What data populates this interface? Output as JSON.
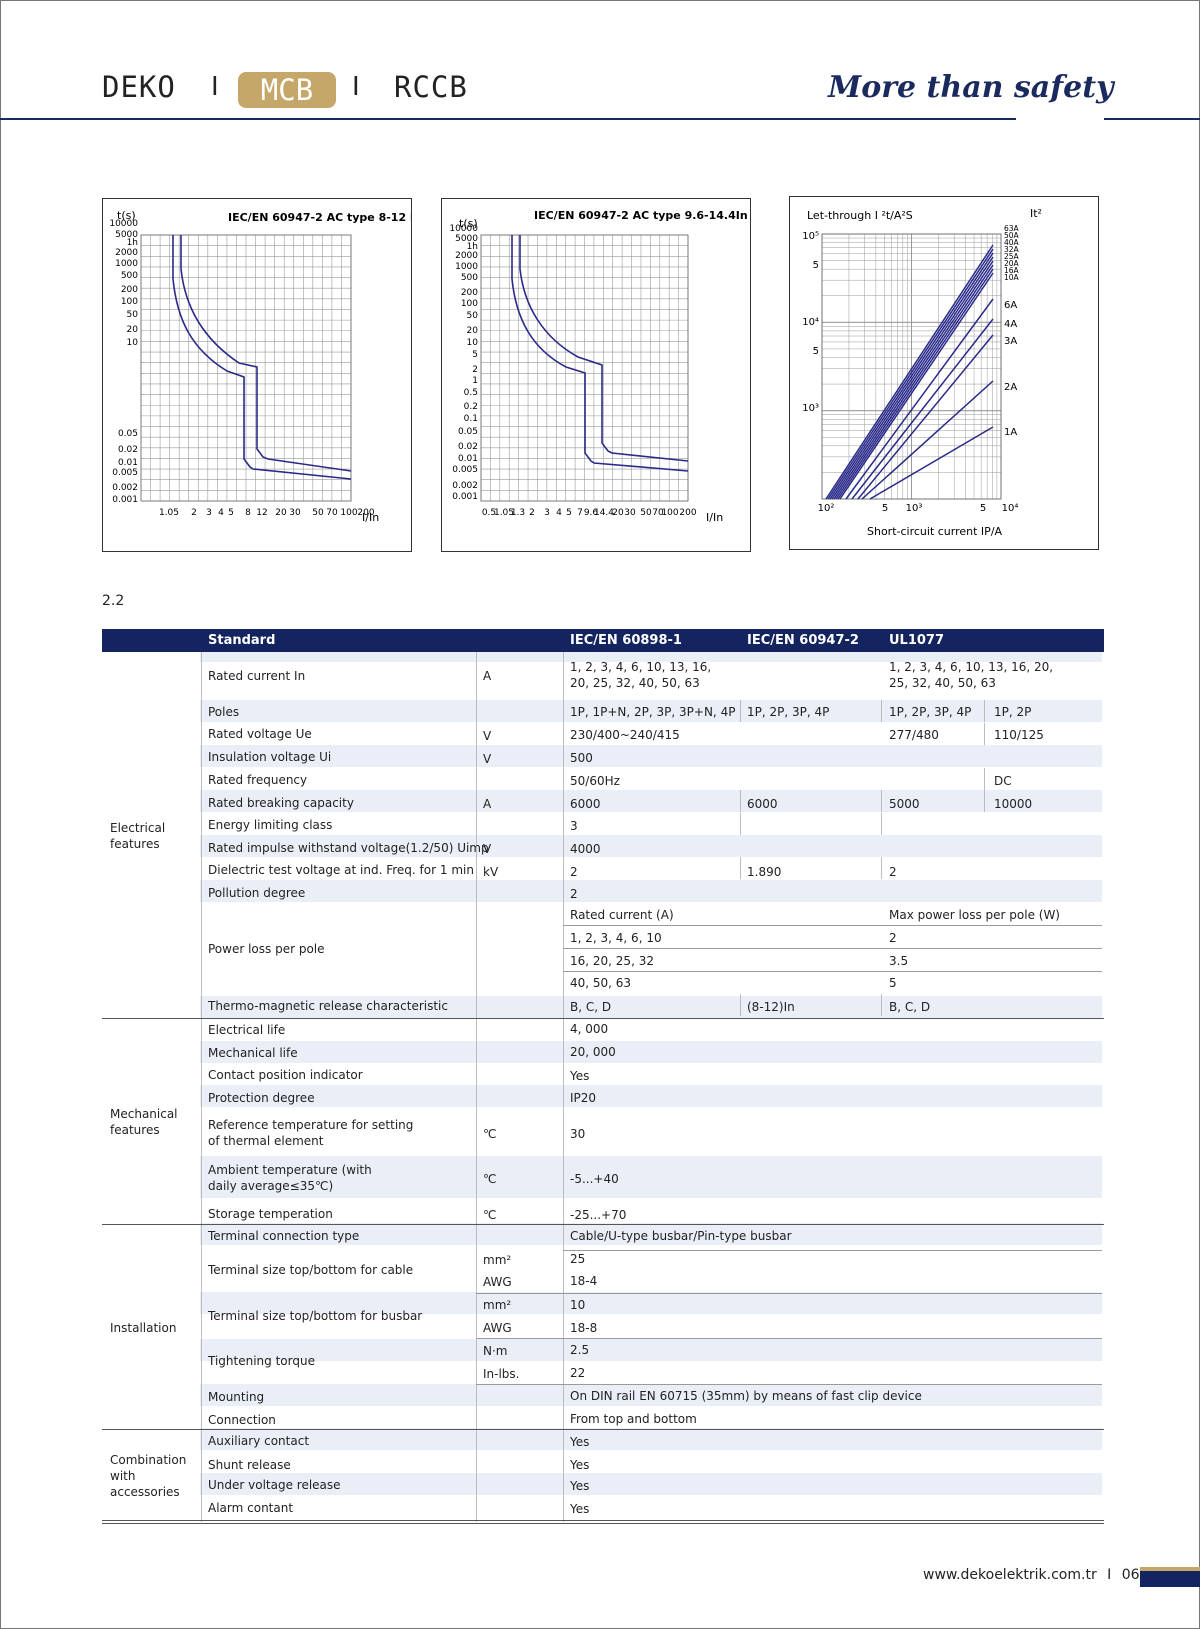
{
  "header": {
    "brand": "DEKO",
    "separator": "I",
    "tab_active": "MCB",
    "tab_other": "RCCB",
    "slogan": "More than safety"
  },
  "charts": [
    {
      "title": "IEC/EN 60947-2 AC type 8-12 In",
      "ylabel": "t(s)",
      "xlabel": "I/In",
      "yticks": [
        "10000",
        "5000",
        "1h",
        "2000",
        "1000",
        "500",
        "200",
        "100",
        "50",
        "20",
        "10",
        "0.05",
        "0.02",
        "0.01",
        "0.005",
        "0.002",
        "0.001"
      ],
      "xticks": [
        "1.05",
        "2",
        "3",
        "4",
        "5",
        "8",
        "12",
        "20",
        "30",
        "50",
        "70",
        "100",
        "200"
      ]
    },
    {
      "title": "IEC/EN 60947-2 AC type 9.6-14.4In",
      "ylabel": "t(s)",
      "xlabel": "I/In",
      "yticks": [
        "10000",
        "5000",
        "1h",
        "2000",
        "1000",
        "500",
        "200",
        "100",
        "50",
        "20",
        "10",
        "5",
        "2",
        "1",
        "0.5",
        "0.2",
        "0.1",
        "0.05",
        "0.02",
        "0.01",
        "0.005",
        "0.002",
        "0.001"
      ],
      "xticks": [
        "0.5",
        "1.05",
        "1.3",
        "2",
        "3",
        "4",
        "5",
        "7",
        "9.6",
        "14.4",
        "20",
        "30",
        "50",
        "70",
        "100",
        "200"
      ]
    },
    {
      "title": "Let-through I ²t/A²S",
      "corner_label": "It²",
      "yticks": [
        "10⁵",
        "5",
        "10⁴",
        "5",
        "10³"
      ],
      "xticks": [
        "10²",
        "5",
        "10³",
        "5",
        "10⁴"
      ],
      "xlabel": "Short-circuit current IP/A",
      "series_labels": [
        "63A",
        "50A",
        "40A",
        "32A",
        "25A",
        "20A",
        "16A",
        "10A",
        "6A",
        "4A",
        "3A",
        "2A",
        "1A"
      ]
    }
  ],
  "section_number": "2.2",
  "table": {
    "headers": [
      "Standard",
      "IEC/EN 60898-1",
      "IEC/EN 60947-2",
      "UL1077"
    ],
    "groups": [
      "Electrical features",
      "Mechanical features",
      "Installation",
      "Combination with accessories"
    ],
    "rows": {
      "rated_current": {
        "label": "Rated current In",
        "unit": "A",
        "v1": "1, 2, 3, 4, 6, 10, 13, 16,",
        "v1b": "20, 25, 32, 40, 50, 63",
        "v3": "1, 2, 3, 4, 6, 10, 13, 16, 20,",
        "v3b": "25, 32, 40, 50, 63"
      },
      "poles": {
        "label": "Poles",
        "v1": "1P, 1P+N, 2P, 3P, 3P+N, 4P",
        "v2": "1P, 2P, 3P, 4P",
        "v3": "1P, 2P, 3P, 4P",
        "v4": "1P, 2P"
      },
      "rated_voltage": {
        "label": "Rated voltage Ue",
        "unit": "V",
        "v1": "230/400~240/415",
        "v3": "277/480",
        "v4": "110/125"
      },
      "insulation_voltage": {
        "label": "Insulation voltage Ui",
        "unit": "V",
        "v1": "500"
      },
      "rated_frequency": {
        "label": "Rated frequency",
        "v1": "50/60Hz",
        "v4": "DC"
      },
      "breaking_capacity": {
        "label": "Rated breaking capacity",
        "unit": "A",
        "v1": "6000",
        "v2": "6000",
        "v3": "5000",
        "v4": "10000"
      },
      "energy_class": {
        "label": "Energy limiting class",
        "v1": "3"
      },
      "impulse_voltage": {
        "label": "Rated impulse withstand voltage(1.2/50) Uimp",
        "unit": "V",
        "v1": "4000"
      },
      "dielectric": {
        "label": "Dielectric test voltage at ind. Freq. for 1 min",
        "unit": "kV",
        "v1": "2",
        "v2": "1.890",
        "v3": "2"
      },
      "pollution": {
        "label": "Pollution degree",
        "v1": "2"
      },
      "power_loss": {
        "label": "Power loss per pole",
        "sub_h1": "Rated current (A)",
        "sub_h2": "Max power loss per pole (W)",
        "r1a": "1, 2, 3, 4, 6, 10",
        "r1b": "2",
        "r2a": "16, 20, 25, 32",
        "r2b": "3.5",
        "r3a": "40, 50, 63",
        "r3b": "5"
      },
      "thermo": {
        "label": "Thermo-magnetic release characteristic",
        "v1": "B, C, D",
        "v2": "(8-12)In",
        "v3": "B, C, D"
      },
      "electrical_life": {
        "label": "Electrical life",
        "v1": "4, 000"
      },
      "mechanical_life": {
        "label": "Mechanical life",
        "v1": "20, 000"
      },
      "contact_indicator": {
        "label": "Contact position indicator",
        "v1": "Yes"
      },
      "protection": {
        "label": "Protection degree",
        "v1": "IP20"
      },
      "ref_temp": {
        "label": "Reference temperature for setting",
        "label2": "of thermal element",
        "unit": "℃",
        "v1": "30"
      },
      "ambient": {
        "label": "Ambient temperature (with",
        "label2": "daily average≤35℃)",
        "unit": "℃",
        "v1": "-5...+40"
      },
      "storage": {
        "label": "Storage temperation",
        "unit": "℃",
        "v1": "-25...+70"
      },
      "terminal_type": {
        "label": "Terminal connection type",
        "v1": "Cable/U-type busbar/Pin-type busbar"
      },
      "terminal_cable": {
        "label": "Terminal size top/bottom for cable",
        "unit_a": "mm²",
        "v_a": "25",
        "unit_b": "AWG",
        "v_b": "18-4"
      },
      "terminal_busbar": {
        "label": "Terminal size top/bottom for busbar",
        "unit_a": "mm²",
        "v_a": "10",
        "unit_b": "AWG",
        "v_b": "18-8"
      },
      "torque": {
        "label": "Tightening torque",
        "unit_a": "N·m",
        "v_a": "2.5",
        "unit_b": "In-lbs.",
        "v_b": "22"
      },
      "mounting": {
        "label": "Mounting",
        "v1": "On DIN rail EN 60715 (35mm) by means of fast clip device"
      },
      "connection": {
        "label": "Connection",
        "v1": "From top and bottom"
      },
      "aux": {
        "label": "Auxiliary contact",
        "v1": "Yes"
      },
      "shunt": {
        "label": "Shunt release",
        "v1": "Yes"
      },
      "undervoltage": {
        "label": "Under voltage release",
        "v1": "Yes"
      },
      "alarm": {
        "label": "Alarm contant",
        "v1": "Yes"
      }
    }
  },
  "footer": {
    "url": "www.dekoelektrik.com.tr",
    "separator": "I",
    "page": "06"
  },
  "colors": {
    "navy": "#14245e",
    "gold": "#c6a76a",
    "band": "#eaeef6",
    "curve": "#2a2a8a"
  }
}
